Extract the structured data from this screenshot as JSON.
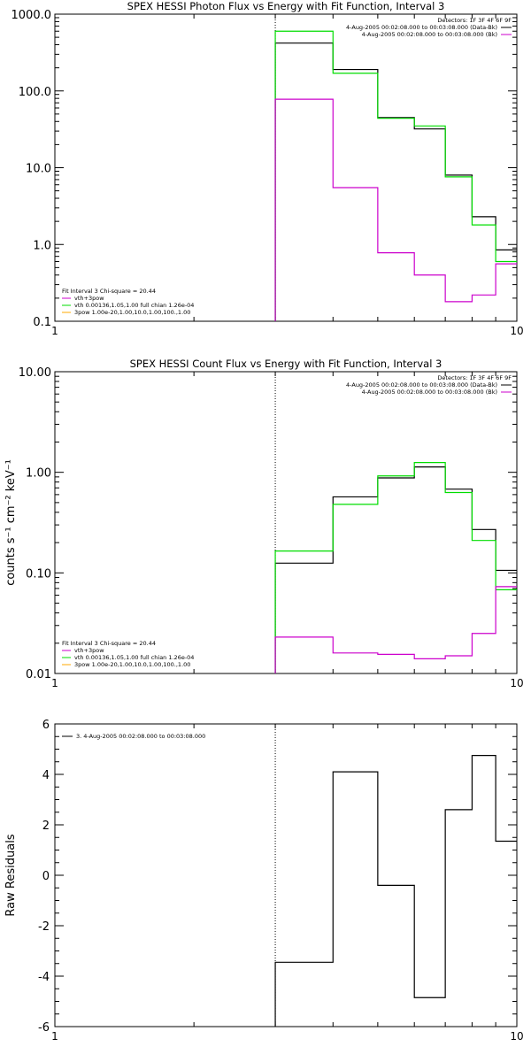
{
  "colors": {
    "data": "#000000",
    "model": "#00dd00",
    "background": "#cc00cc",
    "axis": "#000000"
  },
  "chart_data": [
    {
      "type": "line",
      "title": "SPEX HESSI Photon Flux vs Energy with Fit Function, Interval 3",
      "xlabel": "",
      "ylabel": "",
      "xscale": "log",
      "yscale": "log",
      "xlim": [
        1,
        10
      ],
      "ylim": [
        0.1,
        1000
      ],
      "xtick_labels": [
        "1",
        "10"
      ],
      "ytick_labels": [
        "0.1",
        "1.0",
        "10.0",
        "100.0",
        "1000.0"
      ],
      "edges": [
        3,
        4,
        5,
        6,
        7,
        8,
        9,
        10
      ],
      "series": [
        {
          "name": "4-Aug-2005 00:02:08.000 to 00:03:08.000 (Data-Bk)",
          "color": "#000000",
          "values": [
            420,
            190,
            45,
            32,
            8.0,
            2.3,
            0.85
          ]
        },
        {
          "name": "vth+3pow",
          "color": "#00dd00",
          "values": [
            600,
            170,
            44,
            35,
            7.6,
            1.8,
            0.6
          ]
        },
        {
          "name": "4-Aug-2005 00:02:08.000 to 00:03:08.000 (Bk)",
          "color": "#cc00cc",
          "values": [
            78,
            5.5,
            0.78,
            0.4,
            0.18,
            0.22,
            0.56
          ]
        }
      ],
      "legend_left": {
        "header": "Fit Interval 3    Chi-square = 20.44",
        "items": [
          {
            "label": "vth+3pow",
            "color": "#cc00cc"
          },
          {
            "label": "vth 0.00136,1.05,1.00   full chian 1.26e-04",
            "color": "#00dd00"
          },
          {
            "label": "3pow 1.00e-20,1.00,10.0,1.00,100.,1.00",
            "color": "#ffaa00"
          }
        ]
      },
      "legend_right": {
        "header": "Detectors: 1F 3F 4F 6F 9F",
        "items": [
          {
            "label": "4-Aug-2005 00:02:08.000 to 00:03:08.000 (Data-Bk)",
            "color": "#000000"
          },
          {
            "label": "4-Aug-2005 00:02:08.000 to 00:03:08.000 (Bk)",
            "color": "#cc00cc"
          }
        ]
      }
    },
    {
      "type": "line",
      "title": "SPEX HESSI Count Flux vs Energy with Fit Function, Interval 3",
      "xlabel": "",
      "ylabel": "counts s⁻¹ cm⁻² keV⁻¹",
      "xscale": "log",
      "yscale": "log",
      "xlim": [
        1,
        10
      ],
      "ylim": [
        0.01,
        10
      ],
      "xtick_labels": [
        "1",
        "10"
      ],
      "ytick_labels": [
        "0.01",
        "0.10",
        "1.00",
        "10.00"
      ],
      "edges": [
        3,
        4,
        5,
        6,
        7,
        8,
        9,
        10
      ],
      "series": [
        {
          "name": "4-Aug-2005 00:02:08.000 to 00:03:08.000 (Data-Bk)",
          "color": "#000000",
          "values": [
            0.125,
            0.57,
            0.88,
            1.13,
            0.68,
            0.27,
            0.106
          ]
        },
        {
          "name": "vth+3pow",
          "color": "#00dd00",
          "values": [
            0.165,
            0.48,
            0.92,
            1.25,
            0.63,
            0.21,
            0.068
          ]
        },
        {
          "name": "4-Aug-2005 00:02:08.000 to 00:03:08.000 (Bk)",
          "color": "#cc00cc",
          "values": [
            0.023,
            0.016,
            0.0155,
            0.014,
            0.015,
            0.025,
            0.073
          ]
        }
      ],
      "legend_left": {
        "header": "Fit Interval 3    Chi-square = 20.44",
        "items": [
          {
            "label": "vth+3pow",
            "color": "#cc00cc"
          },
          {
            "label": "vth 0.00136,1.05,1.00   full chian 1.26e-04",
            "color": "#00dd00"
          },
          {
            "label": "3pow 1.00e-20,1.00,10.0,1.00,100.,1.00",
            "color": "#ffaa00"
          }
        ]
      },
      "legend_right": {
        "header": "Detectors: 1F 3F 4F 6F 9F",
        "items": [
          {
            "label": "4-Aug-2005 00:02:08.000 to 00:03:08.000 (Data-Bk)",
            "color": "#000000"
          },
          {
            "label": "4-Aug-2005 00:02:08.000 to 00:03:08.000 (Bk)",
            "color": "#cc00cc"
          }
        ]
      }
    },
    {
      "type": "line",
      "title": "",
      "xlabel": "",
      "ylabel": "Raw Residuals",
      "xscale": "log",
      "yscale": "linear",
      "xlim": [
        1,
        10
      ],
      "ylim": [
        -6,
        6
      ],
      "xtick_labels": [
        "1",
        "10"
      ],
      "ytick_labels": [
        "-6",
        "-4",
        "-2",
        "0",
        "2",
        "4",
        "6"
      ],
      "edges": [
        3,
        4,
        5,
        6,
        7,
        8,
        9,
        10
      ],
      "series": [
        {
          "name": "3. 4-Aug-2005 00:02:08.000 to 00:03:08.000",
          "color": "#000000",
          "values": [
            -3.45,
            4.1,
            -0.4,
            -4.85,
            2.6,
            4.75,
            1.35
          ]
        }
      ],
      "legend_left": {
        "header": "",
        "items": [
          {
            "label": "3. 4-Aug-2005 00:02:08.000 to 00:03:08.000",
            "color": "#000000"
          }
        ]
      }
    }
  ]
}
